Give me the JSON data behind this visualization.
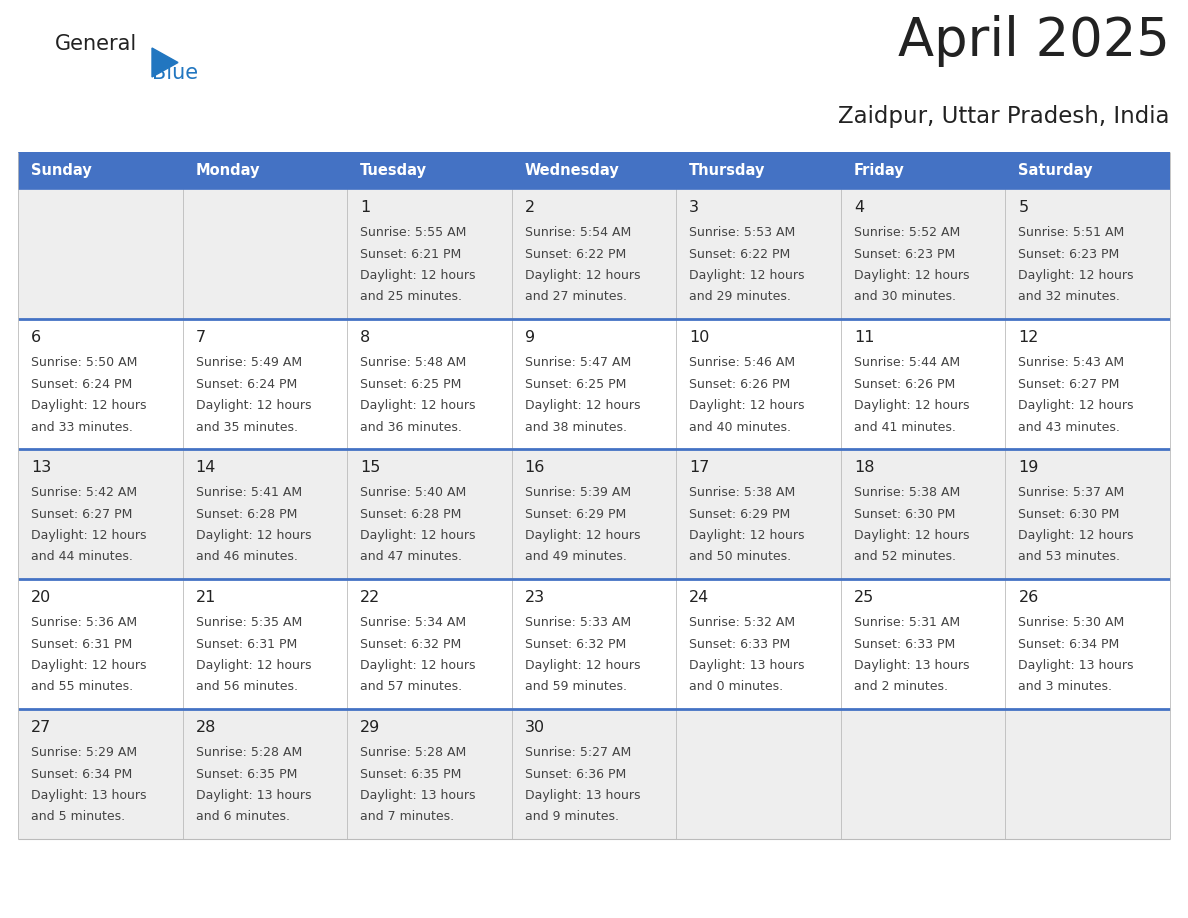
{
  "title": "April 2025",
  "subtitle": "Zaidpur, Uttar Pradesh, India",
  "header_bg": "#4472C4",
  "header_text_color": "#FFFFFF",
  "days_of_week": [
    "Sunday",
    "Monday",
    "Tuesday",
    "Wednesday",
    "Thursday",
    "Friday",
    "Saturday"
  ],
  "row_bg_colors": [
    "#EEEEEE",
    "#FFFFFF",
    "#EEEEEE",
    "#FFFFFF",
    "#EEEEEE"
  ],
  "cell_border_color": "#BBBBBB",
  "week_divider_color": "#4472C4",
  "title_color": "#222222",
  "subtitle_color": "#222222",
  "text_color": "#444444",
  "day_num_color": "#222222",
  "logo_general_color": "#222222",
  "logo_blue_color": "#2176C0",
  "calendar_data": [
    [
      {
        "day": null,
        "sunrise": null,
        "sunset": null,
        "daylight": null
      },
      {
        "day": null,
        "sunrise": null,
        "sunset": null,
        "daylight": null
      },
      {
        "day": 1,
        "sunrise": "5:55 AM",
        "sunset": "6:21 PM",
        "daylight": "12 hours\nand 25 minutes."
      },
      {
        "day": 2,
        "sunrise": "5:54 AM",
        "sunset": "6:22 PM",
        "daylight": "12 hours\nand 27 minutes."
      },
      {
        "day": 3,
        "sunrise": "5:53 AM",
        "sunset": "6:22 PM",
        "daylight": "12 hours\nand 29 minutes."
      },
      {
        "day": 4,
        "sunrise": "5:52 AM",
        "sunset": "6:23 PM",
        "daylight": "12 hours\nand 30 minutes."
      },
      {
        "day": 5,
        "sunrise": "5:51 AM",
        "sunset": "6:23 PM",
        "daylight": "12 hours\nand 32 minutes."
      }
    ],
    [
      {
        "day": 6,
        "sunrise": "5:50 AM",
        "sunset": "6:24 PM",
        "daylight": "12 hours\nand 33 minutes."
      },
      {
        "day": 7,
        "sunrise": "5:49 AM",
        "sunset": "6:24 PM",
        "daylight": "12 hours\nand 35 minutes."
      },
      {
        "day": 8,
        "sunrise": "5:48 AM",
        "sunset": "6:25 PM",
        "daylight": "12 hours\nand 36 minutes."
      },
      {
        "day": 9,
        "sunrise": "5:47 AM",
        "sunset": "6:25 PM",
        "daylight": "12 hours\nand 38 minutes."
      },
      {
        "day": 10,
        "sunrise": "5:46 AM",
        "sunset": "6:26 PM",
        "daylight": "12 hours\nand 40 minutes."
      },
      {
        "day": 11,
        "sunrise": "5:44 AM",
        "sunset": "6:26 PM",
        "daylight": "12 hours\nand 41 minutes."
      },
      {
        "day": 12,
        "sunrise": "5:43 AM",
        "sunset": "6:27 PM",
        "daylight": "12 hours\nand 43 minutes."
      }
    ],
    [
      {
        "day": 13,
        "sunrise": "5:42 AM",
        "sunset": "6:27 PM",
        "daylight": "12 hours\nand 44 minutes."
      },
      {
        "day": 14,
        "sunrise": "5:41 AM",
        "sunset": "6:28 PM",
        "daylight": "12 hours\nand 46 minutes."
      },
      {
        "day": 15,
        "sunrise": "5:40 AM",
        "sunset": "6:28 PM",
        "daylight": "12 hours\nand 47 minutes."
      },
      {
        "day": 16,
        "sunrise": "5:39 AM",
        "sunset": "6:29 PM",
        "daylight": "12 hours\nand 49 minutes."
      },
      {
        "day": 17,
        "sunrise": "5:38 AM",
        "sunset": "6:29 PM",
        "daylight": "12 hours\nand 50 minutes."
      },
      {
        "day": 18,
        "sunrise": "5:38 AM",
        "sunset": "6:30 PM",
        "daylight": "12 hours\nand 52 minutes."
      },
      {
        "day": 19,
        "sunrise": "5:37 AM",
        "sunset": "6:30 PM",
        "daylight": "12 hours\nand 53 minutes."
      }
    ],
    [
      {
        "day": 20,
        "sunrise": "5:36 AM",
        "sunset": "6:31 PM",
        "daylight": "12 hours\nand 55 minutes."
      },
      {
        "day": 21,
        "sunrise": "5:35 AM",
        "sunset": "6:31 PM",
        "daylight": "12 hours\nand 56 minutes."
      },
      {
        "day": 22,
        "sunrise": "5:34 AM",
        "sunset": "6:32 PM",
        "daylight": "12 hours\nand 57 minutes."
      },
      {
        "day": 23,
        "sunrise": "5:33 AM",
        "sunset": "6:32 PM",
        "daylight": "12 hours\nand 59 minutes."
      },
      {
        "day": 24,
        "sunrise": "5:32 AM",
        "sunset": "6:33 PM",
        "daylight": "13 hours\nand 0 minutes."
      },
      {
        "day": 25,
        "sunrise": "5:31 AM",
        "sunset": "6:33 PM",
        "daylight": "13 hours\nand 2 minutes."
      },
      {
        "day": 26,
        "sunrise": "5:30 AM",
        "sunset": "6:34 PM",
        "daylight": "13 hours\nand 3 minutes."
      }
    ],
    [
      {
        "day": 27,
        "sunrise": "5:29 AM",
        "sunset": "6:34 PM",
        "daylight": "13 hours\nand 5 minutes."
      },
      {
        "day": 28,
        "sunrise": "5:28 AM",
        "sunset": "6:35 PM",
        "daylight": "13 hours\nand 6 minutes."
      },
      {
        "day": 29,
        "sunrise": "5:28 AM",
        "sunset": "6:35 PM",
        "daylight": "13 hours\nand 7 minutes."
      },
      {
        "day": 30,
        "sunrise": "5:27 AM",
        "sunset": "6:36 PM",
        "daylight": "13 hours\nand 9 minutes."
      },
      {
        "day": null,
        "sunrise": null,
        "sunset": null,
        "daylight": null
      },
      {
        "day": null,
        "sunrise": null,
        "sunset": null,
        "daylight": null
      },
      {
        "day": null,
        "sunrise": null,
        "sunset": null,
        "daylight": null
      }
    ]
  ]
}
